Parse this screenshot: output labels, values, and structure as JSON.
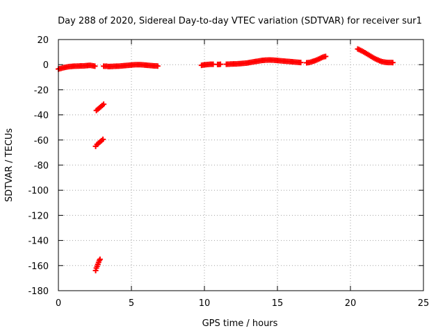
{
  "chart_data": {
    "type": "scatter",
    "title": "Day 288 of 2020, Sidereal Day-to-day VTEC variation (SDTVAR) for receiver sur1",
    "xlabel": "GPS time / hours",
    "ylabel": "SDTVAR / TECUs",
    "xlim": [
      0,
      25
    ],
    "ylim": [
      -180,
      20
    ],
    "xticks": [
      0,
      5,
      10,
      15,
      20,
      25
    ],
    "yticks": [
      20,
      0,
      -20,
      -40,
      -60,
      -80,
      -100,
      -120,
      -140,
      -160,
      -180
    ],
    "grid": true,
    "grid_style": "dotted",
    "legend": "none",
    "marker": "plus",
    "color": "#ff0000",
    "series": [
      {
        "points": [
          [
            0.0,
            -3.5
          ],
          [
            0.1,
            -3.2
          ],
          [
            0.2,
            -2.9
          ],
          [
            0.3,
            -2.6
          ],
          [
            0.4,
            -2.3
          ],
          [
            0.5,
            -2.0
          ],
          [
            0.6,
            -1.8
          ],
          [
            0.7,
            -1.6
          ],
          [
            0.8,
            -1.5
          ],
          [
            0.9,
            -1.4
          ],
          [
            1.0,
            -1.3
          ],
          [
            1.1,
            -1.2
          ],
          [
            1.2,
            -1.2
          ],
          [
            1.3,
            -1.1
          ],
          [
            1.4,
            -1.1
          ],
          [
            1.5,
            -1.0
          ],
          [
            1.6,
            -1.0
          ],
          [
            1.7,
            -1.0
          ],
          [
            1.8,
            -0.9
          ],
          [
            1.9,
            -0.8
          ],
          [
            2.0,
            -0.7
          ],
          [
            2.1,
            -0.6
          ],
          [
            2.2,
            -0.6
          ],
          [
            2.3,
            -0.8
          ],
          [
            2.4,
            -1.0
          ],
          [
            2.5,
            -1.2
          ],
          [
            3.1,
            -1.2
          ],
          [
            3.2,
            -1.3
          ],
          [
            3.3,
            -1.2
          ],
          [
            3.4,
            -1.5
          ],
          [
            3.5,
            -1.5
          ],
          [
            3.6,
            -1.4
          ],
          [
            3.7,
            -1.4
          ],
          [
            3.8,
            -1.3
          ],
          [
            3.9,
            -1.3
          ],
          [
            4.0,
            -1.2
          ],
          [
            4.1,
            -1.2
          ],
          [
            4.2,
            -1.1
          ],
          [
            4.3,
            -1.0
          ],
          [
            4.4,
            -0.9
          ],
          [
            4.5,
            -0.8
          ],
          [
            4.6,
            -0.7
          ],
          [
            4.7,
            -0.6
          ],
          [
            4.8,
            -0.5
          ],
          [
            4.9,
            -0.4
          ],
          [
            5.0,
            -0.3
          ],
          [
            5.1,
            -0.2
          ],
          [
            5.2,
            -0.1
          ],
          [
            5.3,
            0.0
          ],
          [
            5.4,
            0.0
          ],
          [
            5.5,
            0.0
          ],
          [
            5.6,
            0.0
          ],
          [
            5.7,
            -0.1
          ],
          [
            5.8,
            -0.2
          ],
          [
            5.9,
            -0.3
          ],
          [
            6.0,
            -0.4
          ],
          [
            6.1,
            -0.5
          ],
          [
            6.2,
            -0.6
          ],
          [
            6.3,
            -0.7
          ],
          [
            6.4,
            -0.8
          ],
          [
            6.5,
            -0.9
          ],
          [
            6.6,
            -1.0
          ],
          [
            6.7,
            -1.0
          ],
          [
            6.8,
            -1.1
          ],
          [
            2.6,
            -36.5
          ],
          [
            2.7,
            -35.5
          ],
          [
            2.8,
            -34.5
          ],
          [
            2.9,
            -33.5
          ],
          [
            3.0,
            -32.5
          ],
          [
            3.1,
            -31.5
          ],
          [
            2.55,
            -65.0
          ],
          [
            2.65,
            -63.5
          ],
          [
            2.75,
            -62.5
          ],
          [
            2.85,
            -61.5
          ],
          [
            2.95,
            -60.5
          ],
          [
            3.05,
            -59.5
          ],
          [
            2.55,
            -164.0
          ],
          [
            2.6,
            -162.0
          ],
          [
            2.65,
            -160.5
          ],
          [
            2.7,
            -159.0
          ],
          [
            2.75,
            -157.5
          ],
          [
            2.8,
            -156.0
          ],
          [
            2.85,
            -155.0
          ],
          [
            9.8,
            -0.5
          ],
          [
            9.9,
            -0.3
          ],
          [
            10.0,
            -0.1
          ],
          [
            10.1,
            0.0
          ],
          [
            10.2,
            0.1
          ],
          [
            10.3,
            0.2
          ],
          [
            10.4,
            0.3
          ],
          [
            10.5,
            0.3
          ],
          [
            10.6,
            0.3
          ],
          [
            10.9,
            0.2
          ],
          [
            11.0,
            0.2
          ],
          [
            11.1,
            0.3
          ],
          [
            11.5,
            0.3
          ],
          [
            11.6,
            0.4
          ],
          [
            11.7,
            0.4
          ],
          [
            11.8,
            0.5
          ],
          [
            11.9,
            0.5
          ],
          [
            12.0,
            0.6
          ],
          [
            12.1,
            0.6
          ],
          [
            12.2,
            0.6
          ],
          [
            12.3,
            0.7
          ],
          [
            12.4,
            0.8
          ],
          [
            12.5,
            0.9
          ],
          [
            12.6,
            1.0
          ],
          [
            12.7,
            1.1
          ],
          [
            12.8,
            1.2
          ],
          [
            12.9,
            1.3
          ],
          [
            13.0,
            1.5
          ],
          [
            13.1,
            1.7
          ],
          [
            13.2,
            1.9
          ],
          [
            13.3,
            2.1
          ],
          [
            13.4,
            2.3
          ],
          [
            13.5,
            2.5
          ],
          [
            13.6,
            2.7
          ],
          [
            13.7,
            2.9
          ],
          [
            13.8,
            3.1
          ],
          [
            13.9,
            3.3
          ],
          [
            14.0,
            3.4
          ],
          [
            14.1,
            3.5
          ],
          [
            14.2,
            3.6
          ],
          [
            14.3,
            3.6
          ],
          [
            14.4,
            3.7
          ],
          [
            14.5,
            3.7
          ],
          [
            14.6,
            3.6
          ],
          [
            14.7,
            3.6
          ],
          [
            14.8,
            3.5
          ],
          [
            14.9,
            3.4
          ],
          [
            15.0,
            3.3
          ],
          [
            15.1,
            3.2
          ],
          [
            15.2,
            3.1
          ],
          [
            15.3,
            3.0
          ],
          [
            15.4,
            2.9
          ],
          [
            15.5,
            2.8
          ],
          [
            15.6,
            2.7
          ],
          [
            15.7,
            2.6
          ],
          [
            15.8,
            2.5
          ],
          [
            15.9,
            2.4
          ],
          [
            16.0,
            2.3
          ],
          [
            16.1,
            2.2
          ],
          [
            16.2,
            2.1
          ],
          [
            16.3,
            2.0
          ],
          [
            16.4,
            1.9
          ],
          [
            16.5,
            1.8
          ],
          [
            16.6,
            1.7
          ],
          [
            17.0,
            1.5
          ],
          [
            17.1,
            1.6
          ],
          [
            17.2,
            1.8
          ],
          [
            17.3,
            2.1
          ],
          [
            17.4,
            2.5
          ],
          [
            17.5,
            2.9
          ],
          [
            17.6,
            3.3
          ],
          [
            17.7,
            3.8
          ],
          [
            17.8,
            4.3
          ],
          [
            17.9,
            4.8
          ],
          [
            18.0,
            5.4
          ],
          [
            18.1,
            5.9
          ],
          [
            18.2,
            6.3
          ],
          [
            18.3,
            6.5
          ],
          [
            20.5,
            12.5
          ],
          [
            20.6,
            12.0
          ],
          [
            20.7,
            11.4
          ],
          [
            20.8,
            10.8
          ],
          [
            20.9,
            10.2
          ],
          [
            21.0,
            9.5
          ],
          [
            21.1,
            8.8
          ],
          [
            21.2,
            8.1
          ],
          [
            21.3,
            7.4
          ],
          [
            21.4,
            6.7
          ],
          [
            21.5,
            6.0
          ],
          [
            21.6,
            5.3
          ],
          [
            21.7,
            4.7
          ],
          [
            21.8,
            4.1
          ],
          [
            21.9,
            3.6
          ],
          [
            22.0,
            3.1
          ],
          [
            22.1,
            2.7
          ],
          [
            22.2,
            2.3
          ],
          [
            22.3,
            2.1
          ],
          [
            22.4,
            1.9
          ],
          [
            22.5,
            1.8
          ],
          [
            22.6,
            1.7
          ],
          [
            22.7,
            1.7
          ],
          [
            22.8,
            1.7
          ],
          [
            22.9,
            1.6
          ]
        ]
      }
    ]
  }
}
